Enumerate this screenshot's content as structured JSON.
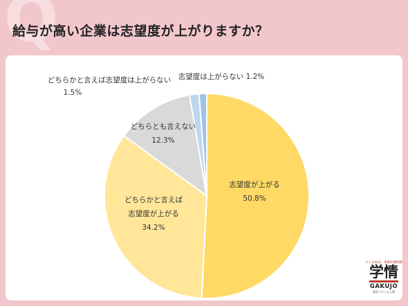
{
  "header": {
    "q_mark": "Q",
    "title": "給与が高い企業は志望度が上がりますか？"
  },
  "chart_data": {
    "type": "pie",
    "title": "",
    "start_angle_deg": 0,
    "direction": "clockwise",
    "slices": [
      {
        "label_lines": [
          "志望度が上がる"
        ],
        "value": 50.8,
        "value_label": "50.8%",
        "color": "#ffd966"
      },
      {
        "label_lines": [
          "どちらかと言えば",
          "志望度が上がる"
        ],
        "value": 34.2,
        "value_label": "34.2%",
        "color": "#ffe699"
      },
      {
        "label_lines": [
          "どちらとも言えない"
        ],
        "value": 12.3,
        "value_label": "12.3%",
        "color": "#d9d9d9"
      },
      {
        "label_lines": [
          "どちらかと言えば志望度は上がらない"
        ],
        "value": 1.5,
        "value_label": "1.5%",
        "color": "#bdd7ee"
      },
      {
        "label_lines": [
          "志望度は上がらない"
        ],
        "value": 1.2,
        "value_label": "1.2%",
        "color": "#9dc3e6"
      }
    ]
  },
  "logo": {
    "tagline": "つくるのは、未来の選択肢",
    "kanji": "学情",
    "roman": "GAKUJO",
    "sub": "東証プライム上場",
    "accent": "#c0392b"
  }
}
